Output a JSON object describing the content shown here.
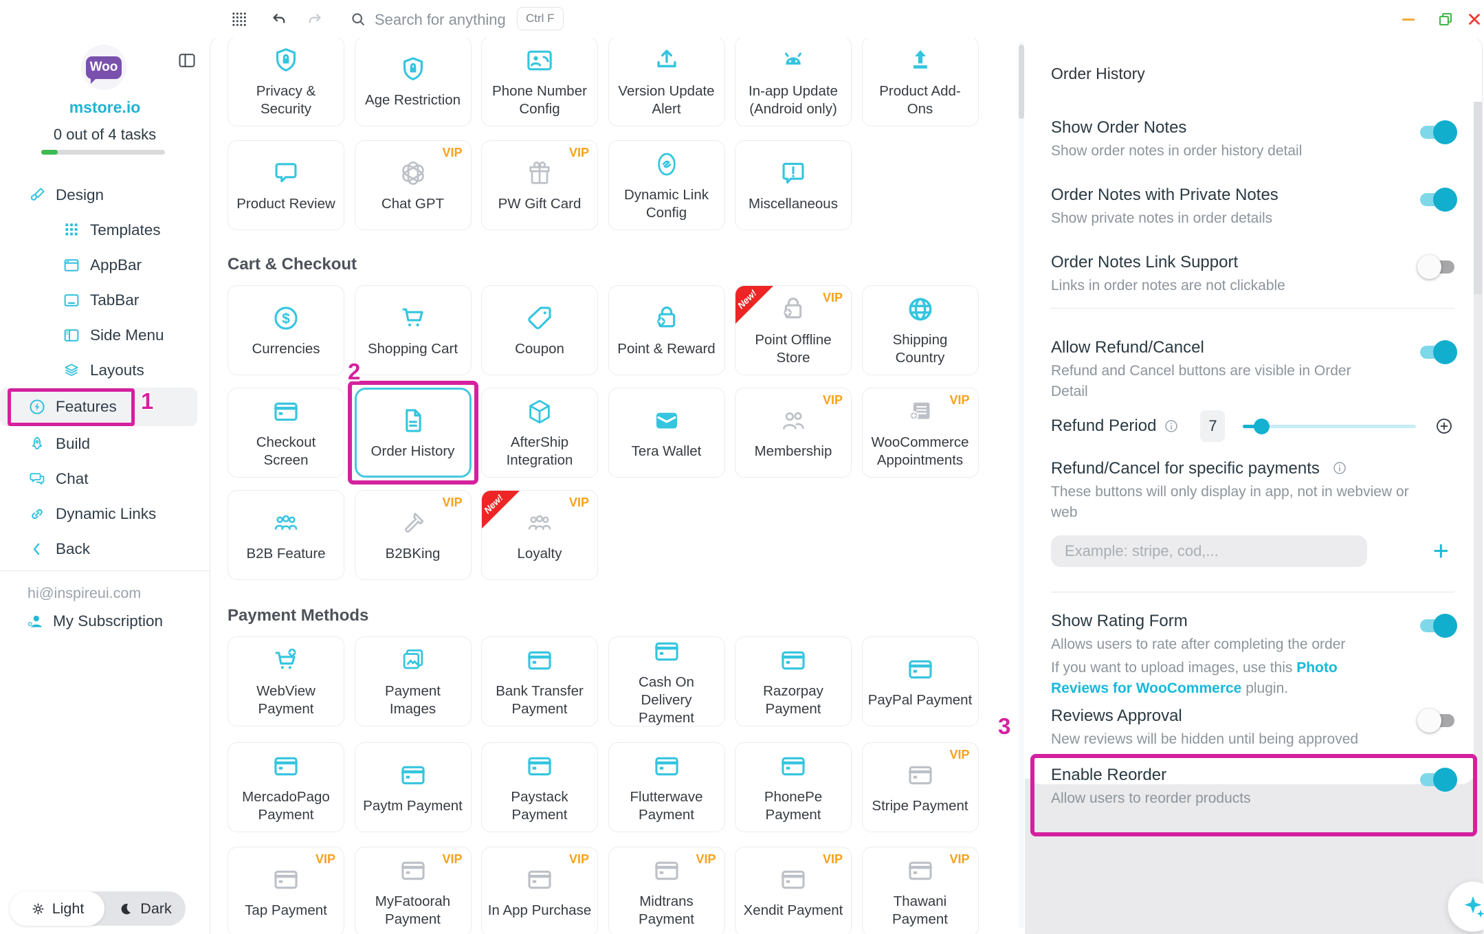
{
  "colors": {
    "accent_cyan": "#35c5df",
    "magenta": "#d4219e",
    "vip_orange": "#f7a21b",
    "new_red": "#ee2525",
    "toggle_on": "#12aecd",
    "progress_green": "#3eba52",
    "woo_purple": "#7a50ad"
  },
  "topbar": {
    "search_placeholder": "Search for anything",
    "shortcut": "Ctrl F"
  },
  "sidebar": {
    "logo": "Woo",
    "site": "mstore.io",
    "tasks": "0 out of 4 tasks",
    "progress_percent": 13,
    "menu": [
      {
        "label": "Design",
        "icon": "paint-brush",
        "level": 0
      },
      {
        "label": "Templates",
        "icon": "grid",
        "level": 1
      },
      {
        "label": "AppBar",
        "icon": "appbar",
        "level": 1
      },
      {
        "label": "TabBar",
        "icon": "tabbar",
        "level": 1
      },
      {
        "label": "Side Menu",
        "icon": "sidemenu",
        "level": 1
      },
      {
        "label": "Layouts",
        "icon": "layers",
        "level": 1
      },
      {
        "label": "Features",
        "icon": "bolt-circle",
        "level": 0,
        "active": true
      },
      {
        "label": "Build",
        "icon": "rocket",
        "level": 0
      },
      {
        "label": "Chat",
        "icon": "chat",
        "level": 0
      },
      {
        "label": "Dynamic Links",
        "icon": "chain",
        "level": 0
      },
      {
        "label": "Back",
        "icon": "chevron-left",
        "level": 0
      }
    ],
    "email": "hi@inspireui.com",
    "subscription": "My Subscription",
    "theme": {
      "light": "Light",
      "dark": "Dark"
    }
  },
  "content": {
    "vip_label": "VIP",
    "new_label": "New!",
    "sections": [
      {
        "header": null,
        "row_class": "",
        "cards": [
          {
            "label": "Privacy & Security",
            "icon": "shield-lock",
            "tone": "cyan"
          },
          {
            "label": "Age Restriction",
            "icon": "shield-lock",
            "tone": "cyan"
          },
          {
            "label": "Phone Number Config",
            "icon": "contact-phone",
            "tone": "cyan"
          },
          {
            "label": "Version Update Alert",
            "icon": "upload-tray",
            "tone": "cyan"
          },
          {
            "label": "In-app Update (Android only)",
            "icon": "android",
            "tone": "cyan"
          },
          {
            "label": "Product Add-Ons",
            "icon": "upload-solid",
            "tone": "cyan"
          }
        ]
      },
      {
        "header": null,
        "row_class": "",
        "cards": [
          {
            "label": "Product Review",
            "icon": "chat-bubble",
            "tone": "cyan"
          },
          {
            "label": "Chat GPT",
            "icon": "gpt-knot",
            "tone": "gray",
            "vip": true
          },
          {
            "label": "PW Gift Card",
            "icon": "gift",
            "tone": "gray",
            "vip": true
          },
          {
            "label": "Dynamic Link Config",
            "icon": "link-badge",
            "tone": "cyan"
          },
          {
            "label": "Miscellaneous",
            "icon": "alert-bubble",
            "tone": "cyan"
          }
        ]
      },
      {
        "header": "Cart & Checkout",
        "header_class": "h-cart",
        "row_class": "tight",
        "cards": [
          {
            "label": "Currencies",
            "icon": "dollar-circle",
            "tone": "cyan"
          },
          {
            "label": "Shopping Cart",
            "icon": "cart",
            "tone": "cyan"
          },
          {
            "label": "Coupon",
            "icon": "tag",
            "tone": "cyan"
          },
          {
            "label": "Point & Reward",
            "icon": "bag-plus",
            "tone": "cyan"
          },
          {
            "label": "Point Offline Store",
            "icon": "bag-plus",
            "tone": "gray",
            "vip": true,
            "new": true
          },
          {
            "label": "Shipping Country",
            "icon": "globe",
            "tone": "cyan"
          }
        ]
      },
      {
        "header": null,
        "row_class": "tight",
        "cards": [
          {
            "label": "Checkout Screen",
            "icon": "card",
            "tone": "cyan"
          },
          {
            "label": "Order History",
            "icon": "doc",
            "tone": "cyan",
            "selected": true
          },
          {
            "label": "AfterShip Integration",
            "icon": "cube",
            "tone": "cyan"
          },
          {
            "label": "Tera Wallet",
            "icon": "wallet",
            "tone": "cyan"
          },
          {
            "label": "Membership",
            "icon": "people-2",
            "tone": "gray",
            "vip": true
          },
          {
            "label": "WooCommerce Appointments",
            "icon": "calendar-plus",
            "tone": "gray",
            "vip": true
          }
        ]
      },
      {
        "header": null,
        "row_class": "tight",
        "cards": [
          {
            "label": "B2B Feature",
            "icon": "people-3",
            "tone": "cyan"
          },
          {
            "label": "B2BKing",
            "icon": "hammer",
            "tone": "gray",
            "vip": true
          },
          {
            "label": "Loyalty",
            "icon": "people-3",
            "tone": "gray",
            "vip": true,
            "new": true
          }
        ]
      },
      {
        "header": "Payment Methods",
        "header_class": "h-pay",
        "row_class": "p2",
        "cards": [
          {
            "label": "WebView Payment",
            "icon": "cart-plus",
            "tone": "cyan"
          },
          {
            "label": "Payment Images",
            "icon": "images",
            "tone": "cyan"
          },
          {
            "label": "Bank Transfer Payment",
            "icon": "card",
            "tone": "cyan"
          },
          {
            "label": "Cash On Delivery Payment",
            "icon": "card",
            "tone": "cyan"
          },
          {
            "label": "Razorpay Payment",
            "icon": "card",
            "tone": "cyan"
          },
          {
            "label": "PayPal Payment",
            "icon": "card",
            "tone": "cyan"
          }
        ]
      },
      {
        "header": null,
        "row_class": "p3",
        "cards": [
          {
            "label": "MercadoPago Payment",
            "icon": "card",
            "tone": "cyan"
          },
          {
            "label": "Paytm Payment",
            "icon": "card",
            "tone": "cyan"
          },
          {
            "label": "Paystack Payment",
            "icon": "card",
            "tone": "cyan"
          },
          {
            "label": "Flutterwave Payment",
            "icon": "card",
            "tone": "cyan"
          },
          {
            "label": "PhonePe Payment",
            "icon": "card",
            "tone": "cyan"
          },
          {
            "label": "Stripe Payment",
            "icon": "card",
            "tone": "gray",
            "vip": true
          }
        ]
      },
      {
        "header": null,
        "row_class": "",
        "cards": [
          {
            "label": "Tap Payment",
            "icon": "card",
            "tone": "gray",
            "vip": true
          },
          {
            "label": "MyFatoorah Payment",
            "icon": "card",
            "tone": "gray",
            "vip": true
          },
          {
            "label": "In App Purchase",
            "icon": "card",
            "tone": "gray",
            "vip": true
          },
          {
            "label": "Midtrans Payment",
            "icon": "card",
            "tone": "gray",
            "vip": true
          },
          {
            "label": "Xendit Payment",
            "icon": "card",
            "tone": "gray",
            "vip": true
          },
          {
            "label": "Thawani Payment",
            "icon": "card",
            "tone": "gray",
            "vip": true
          }
        ]
      }
    ]
  },
  "panel": {
    "title": "Order History",
    "show_order_notes": {
      "title": "Show Order Notes",
      "desc": "Show order notes in order history detail",
      "state": "on"
    },
    "private_notes": {
      "title": "Order Notes with Private Notes",
      "desc": "Show private notes in order details",
      "state": "on"
    },
    "link_support": {
      "title": "Order Notes Link Support",
      "desc": "Links in order notes are not clickable",
      "state": "off"
    },
    "allow_refund": {
      "title": "Allow Refund/Cancel",
      "desc": "Refund and Cancel buttons are visible in Order Detail",
      "state": "on"
    },
    "refund_period": {
      "label": "Refund Period",
      "value": "7"
    },
    "specific_payments": {
      "title": "Refund/Cancel for specific payments",
      "desc": "These buttons will only display in app, not in webview or web"
    },
    "payments_input": {
      "placeholder": "Example: stripe, cod,...",
      "add_label": "+"
    },
    "rating": {
      "title": "Show Rating Form",
      "desc": "Allows users to rate after completing the order",
      "upload_pre": "If you want to upload images, use this ",
      "link": "Photo Reviews for WooCommerce",
      "upload_post": " plugin.",
      "state": "on"
    },
    "reviews_approval": {
      "title": "Reviews Approval",
      "desc": "New reviews will be hidden until being approved",
      "state": "off"
    },
    "enable_reorder": {
      "title": "Enable Reorder",
      "desc": "Allow users to reorder products",
      "state": "on"
    }
  },
  "annotations": {
    "step1": "1",
    "step2": "2",
    "step3": "3"
  }
}
